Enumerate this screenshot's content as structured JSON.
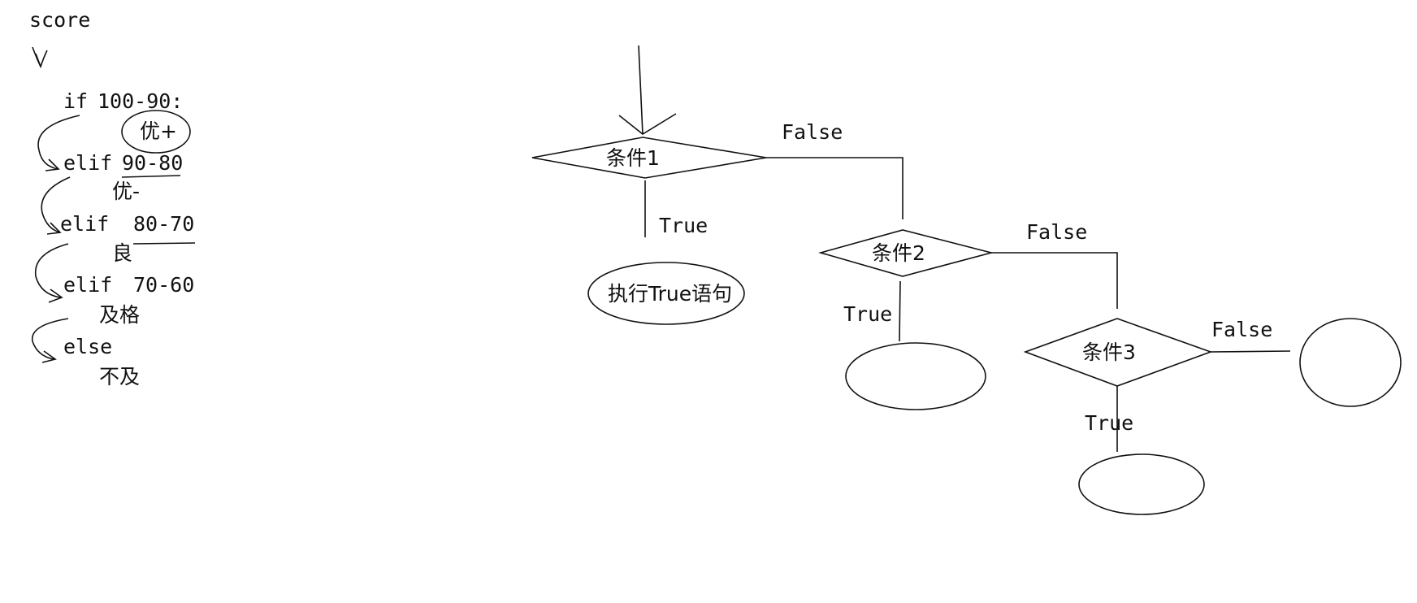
{
  "code_notes": {
    "variable": "score",
    "lines": [
      {
        "keyword": "if",
        "range": "100-90:",
        "result": "优+"
      },
      {
        "keyword": "elif",
        "range": "90-80",
        "result": "优-"
      },
      {
        "keyword": "elif",
        "range": "80-70",
        "result": "良"
      },
      {
        "keyword": "elif",
        "range": "70-60",
        "result": "及格"
      },
      {
        "keyword": "else",
        "range": "",
        "result": "不及"
      }
    ]
  },
  "flowchart": {
    "conditions": [
      "条件1",
      "条件2",
      "条件3"
    ],
    "true_label": "True",
    "false_label": "False",
    "action_label": "执行True语句"
  },
  "colors": {
    "ink": "#111111",
    "background": "#ffffff"
  }
}
